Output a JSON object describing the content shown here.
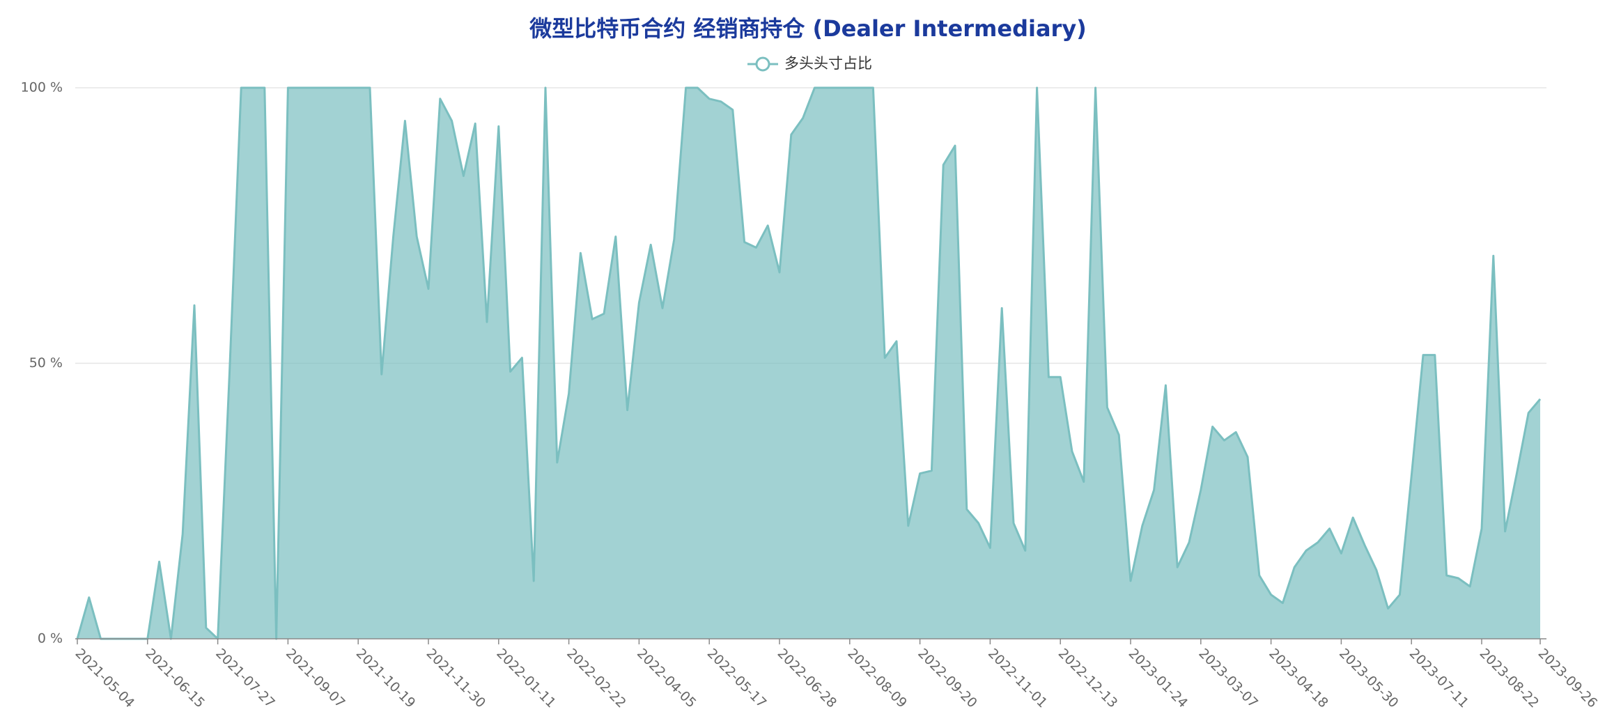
{
  "chart_data": {
    "type": "area",
    "title": "微型比特币合约 经销商持仓 (Dealer Intermediary)",
    "categories": [
      "2021-05-04",
      null,
      null,
      null,
      null,
      null,
      "2021-06-15",
      null,
      null,
      null,
      null,
      null,
      "2021-07-27",
      null,
      null,
      null,
      null,
      null,
      "2021-09-07",
      null,
      null,
      null,
      null,
      null,
      "2021-10-19",
      null,
      null,
      null,
      null,
      null,
      "2021-11-30",
      null,
      null,
      null,
      null,
      null,
      "2022-01-11",
      null,
      null,
      null,
      null,
      null,
      "2022-02-22",
      null,
      null,
      null,
      null,
      null,
      "2022-04-05",
      null,
      null,
      null,
      null,
      null,
      "2022-05-17",
      null,
      null,
      null,
      null,
      null,
      "2022-06-28",
      null,
      null,
      null,
      null,
      null,
      "2022-08-09",
      null,
      null,
      null,
      null,
      null,
      "2022-09-20",
      null,
      null,
      null,
      null,
      null,
      "2022-11-01",
      null,
      null,
      null,
      null,
      null,
      "2022-12-13",
      null,
      null,
      null,
      null,
      null,
      "2023-01-24",
      null,
      null,
      null,
      null,
      null,
      "2023-03-07",
      null,
      null,
      null,
      null,
      null,
      "2023-04-18",
      null,
      null,
      null,
      null,
      null,
      "2023-05-30",
      null,
      null,
      null,
      null,
      null,
      "2023-07-11",
      null,
      null,
      null,
      null,
      null,
      "2023-08-22",
      null,
      null,
      null,
      null,
      "2023-09-26"
    ],
    "series": [
      {
        "name": "多头头寸占比",
        "color": "#7bbfc0",
        "values": [
          0,
          7.5,
          0,
          0,
          0,
          0,
          0,
          14,
          0,
          19,
          60.5,
          2,
          0,
          48,
          100,
          100,
          100,
          0,
          100,
          100,
          100,
          100,
          100,
          100,
          100,
          100,
          48,
          73,
          94,
          73,
          63.5,
          98,
          94,
          84,
          93.5,
          57.5,
          93,
          48.5,
          51,
          10.5,
          100,
          32,
          44.5,
          70,
          58,
          59,
          73,
          41.5,
          61,
          71.5,
          60,
          72.5,
          100,
          100,
          98,
          97.5,
          96,
          72,
          71,
          75,
          66.5,
          91.5,
          94.5,
          100,
          100,
          100,
          100,
          100,
          100,
          51,
          54,
          20.5,
          30,
          30.5,
          86,
          89.5,
          23.5,
          21,
          16.5,
          60,
          21,
          16,
          100,
          47.5,
          47.5,
          34,
          28.5,
          100,
          42,
          37,
          10.5,
          20.5,
          27,
          46,
          13,
          17.5,
          27,
          38.5,
          36,
          37.5,
          33,
          11.5,
          8,
          6.5,
          13,
          16,
          17.5,
          20,
          15.5,
          22,
          17,
          12.5,
          5.5,
          8,
          29.5,
          51.5,
          51.5,
          11.5,
          11,
          9.5,
          20,
          69.5,
          19.5,
          30,
          41,
          43.5
        ]
      }
    ],
    "ylim": [
      0,
      100
    ],
    "yticks": [
      {
        "value": 0,
        "label": "0 %"
      },
      {
        "value": 50,
        "label": "50 %"
      },
      {
        "value": 100,
        "label": "100 %"
      }
    ],
    "grid": true,
    "legend": "top"
  }
}
